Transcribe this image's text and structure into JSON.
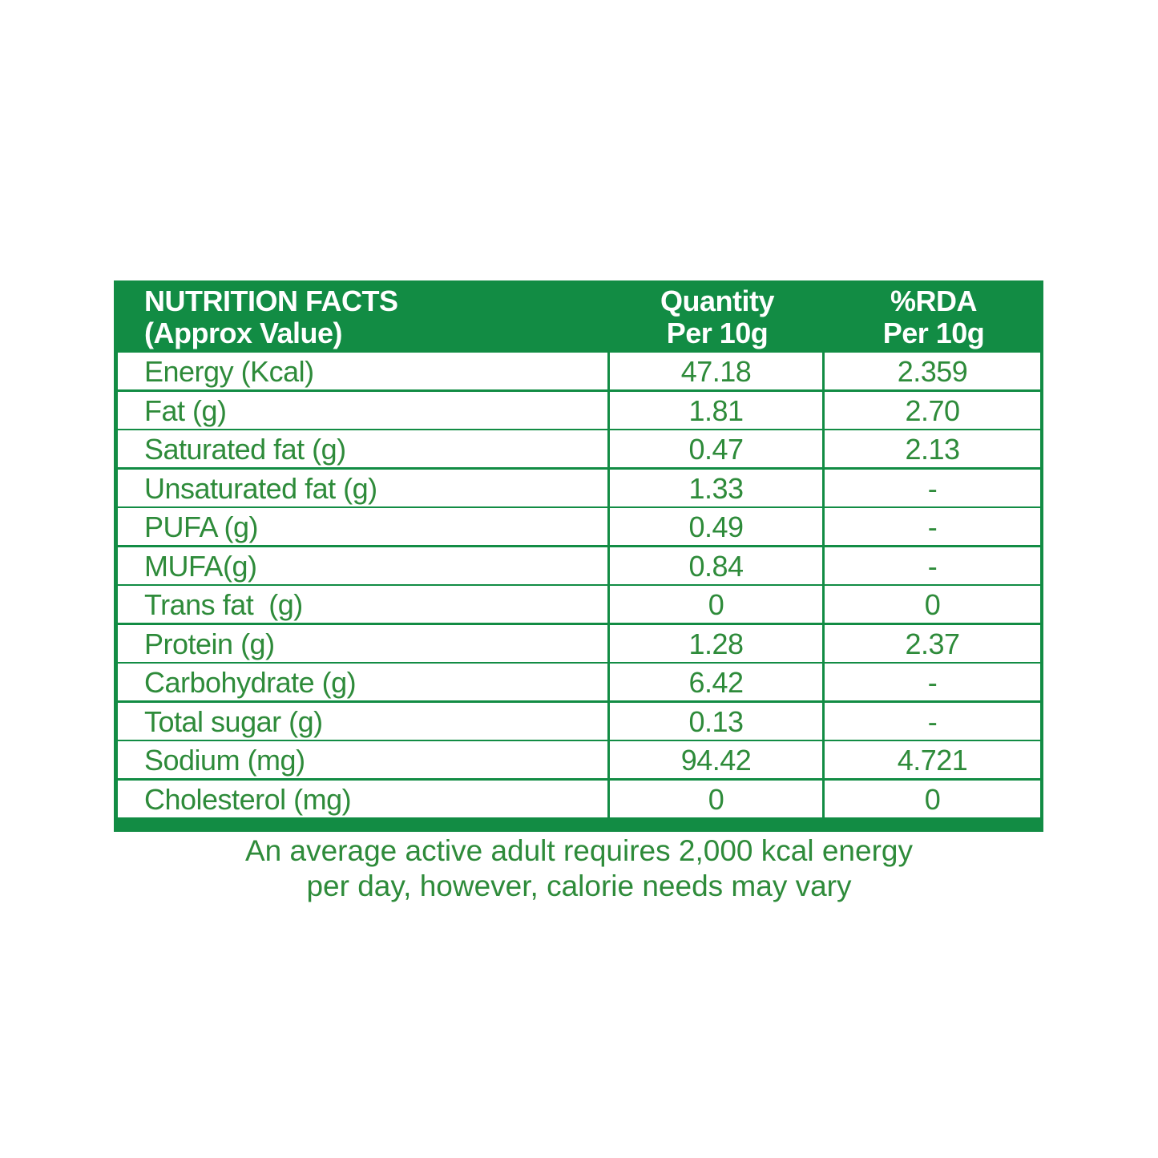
{
  "colors": {
    "header_bg": "#128c44",
    "text": "#2e8b3a"
  },
  "header": {
    "col1_line1": "NUTRITION FACTS",
    "col1_line2": "(Approx Value)",
    "col2_line1": "Quantity",
    "col2_line2": "Per 10g",
    "col3_line1": "%RDA",
    "col3_line2": "Per 10g"
  },
  "rows": [
    {
      "name": "Energy (Kcal)",
      "qty": "47.18",
      "rda": "2.359"
    },
    {
      "name": "Fat (g)",
      "qty": "1.81",
      "rda": "2.70"
    },
    {
      "name": "Saturated fat (g)",
      "qty": "0.47",
      "rda": "2.13"
    },
    {
      "name": "Unsaturated fat (g)",
      "qty": "1.33",
      "rda": "-"
    },
    {
      "name": "PUFA (g)",
      "qty": "0.49",
      "rda": "-"
    },
    {
      "name": "MUFA(g)",
      "qty": "0.84",
      "rda": "-"
    },
    {
      "name": "Trans fat  (g)",
      "qty": "0",
      "rda": "0"
    },
    {
      "name": "Protein (g)",
      "qty": "1.28",
      "rda": "2.37"
    },
    {
      "name": "Carbohydrate (g)",
      "qty": "6.42",
      "rda": "-"
    },
    {
      "name": "Total sugar (g)",
      "qty": "0.13",
      "rda": "-"
    },
    {
      "name": "Sodium (mg)",
      "qty": "94.42",
      "rda": "4.721"
    },
    {
      "name": "Cholesterol (mg)",
      "qty": "0",
      "rda": "0"
    }
  ],
  "note": {
    "line1": "An average active adult requires 2,000 kcal energy",
    "line2": "per day, however, calorie needs may vary"
  }
}
